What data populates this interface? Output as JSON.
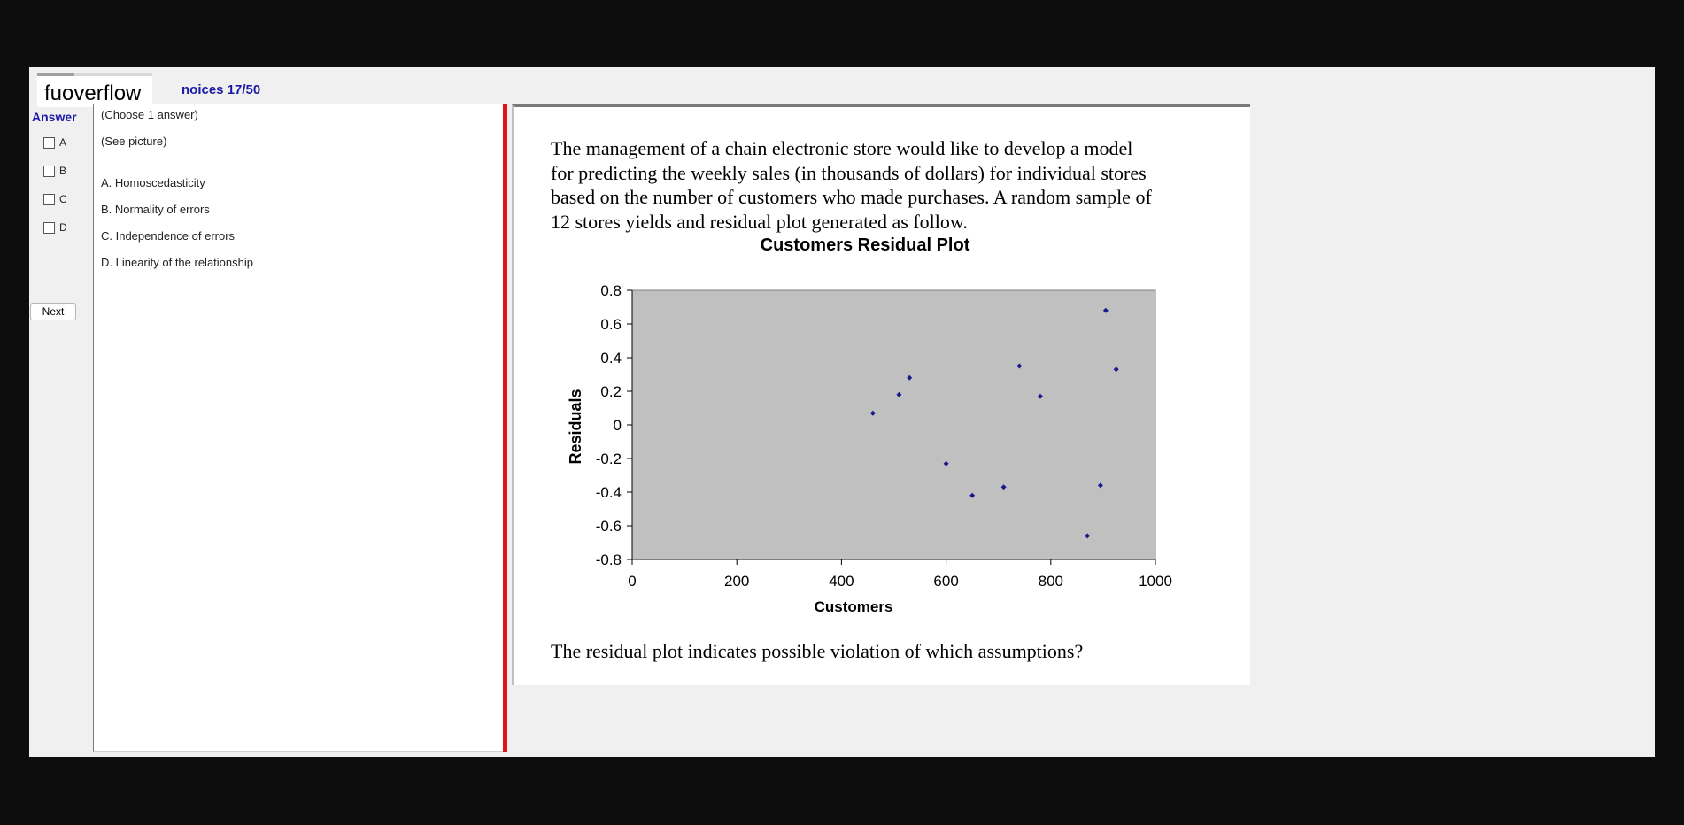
{
  "watermark": "fuoverflow",
  "header": {
    "title": "noices 17/50"
  },
  "answer": {
    "label": "Answer",
    "options": [
      "A",
      "B",
      "C",
      "D"
    ]
  },
  "nav": {
    "next_label": "Next"
  },
  "left": {
    "instruction": "(Choose 1 answer)",
    "note": "(See picture)",
    "choices": [
      "A.  Homoscedasticity",
      "B.  Normality of errors",
      "C.  Independence of errors",
      "D.  Linearity of the relationship"
    ]
  },
  "question": {
    "text": "The management of a chain electronic store would like to develop a model\nfor predicting the weekly sales (in thousands of dollars) for individual stores\nbased on the number of customers who made purchases. A random sample of\n12 stores yields and residual plot generated as follow.",
    "footer": "The residual plot indicates possible violation of which assumptions?"
  },
  "chart_data": {
    "type": "scatter",
    "title": "Customers  Residual Plot",
    "xlabel": "Customers",
    "ylabel": "Residuals",
    "xlim": [
      0,
      1000
    ],
    "ylim": [
      -0.8,
      0.8
    ],
    "xticks": [
      "0",
      "200",
      "400",
      "600",
      "800",
      "1000"
    ],
    "yticks": [
      "0.8",
      "0.6",
      "0.4",
      "0.2",
      "0",
      "-0.2",
      "-0.4",
      "-0.6",
      "-0.8"
    ],
    "grid": false,
    "plot_background": "#c0c0c0",
    "point_color": "#1a1a8c",
    "points": [
      {
        "x": 460,
        "y": 0.07
      },
      {
        "x": 510,
        "y": 0.18
      },
      {
        "x": 530,
        "y": 0.28
      },
      {
        "x": 600,
        "y": -0.23
      },
      {
        "x": 650,
        "y": -0.42
      },
      {
        "x": 710,
        "y": -0.37
      },
      {
        "x": 740,
        "y": 0.35
      },
      {
        "x": 780,
        "y": 0.17
      },
      {
        "x": 870,
        "y": -0.66
      },
      {
        "x": 895,
        "y": -0.36
      },
      {
        "x": 905,
        "y": 0.68
      },
      {
        "x": 925,
        "y": 0.33
      }
    ]
  }
}
